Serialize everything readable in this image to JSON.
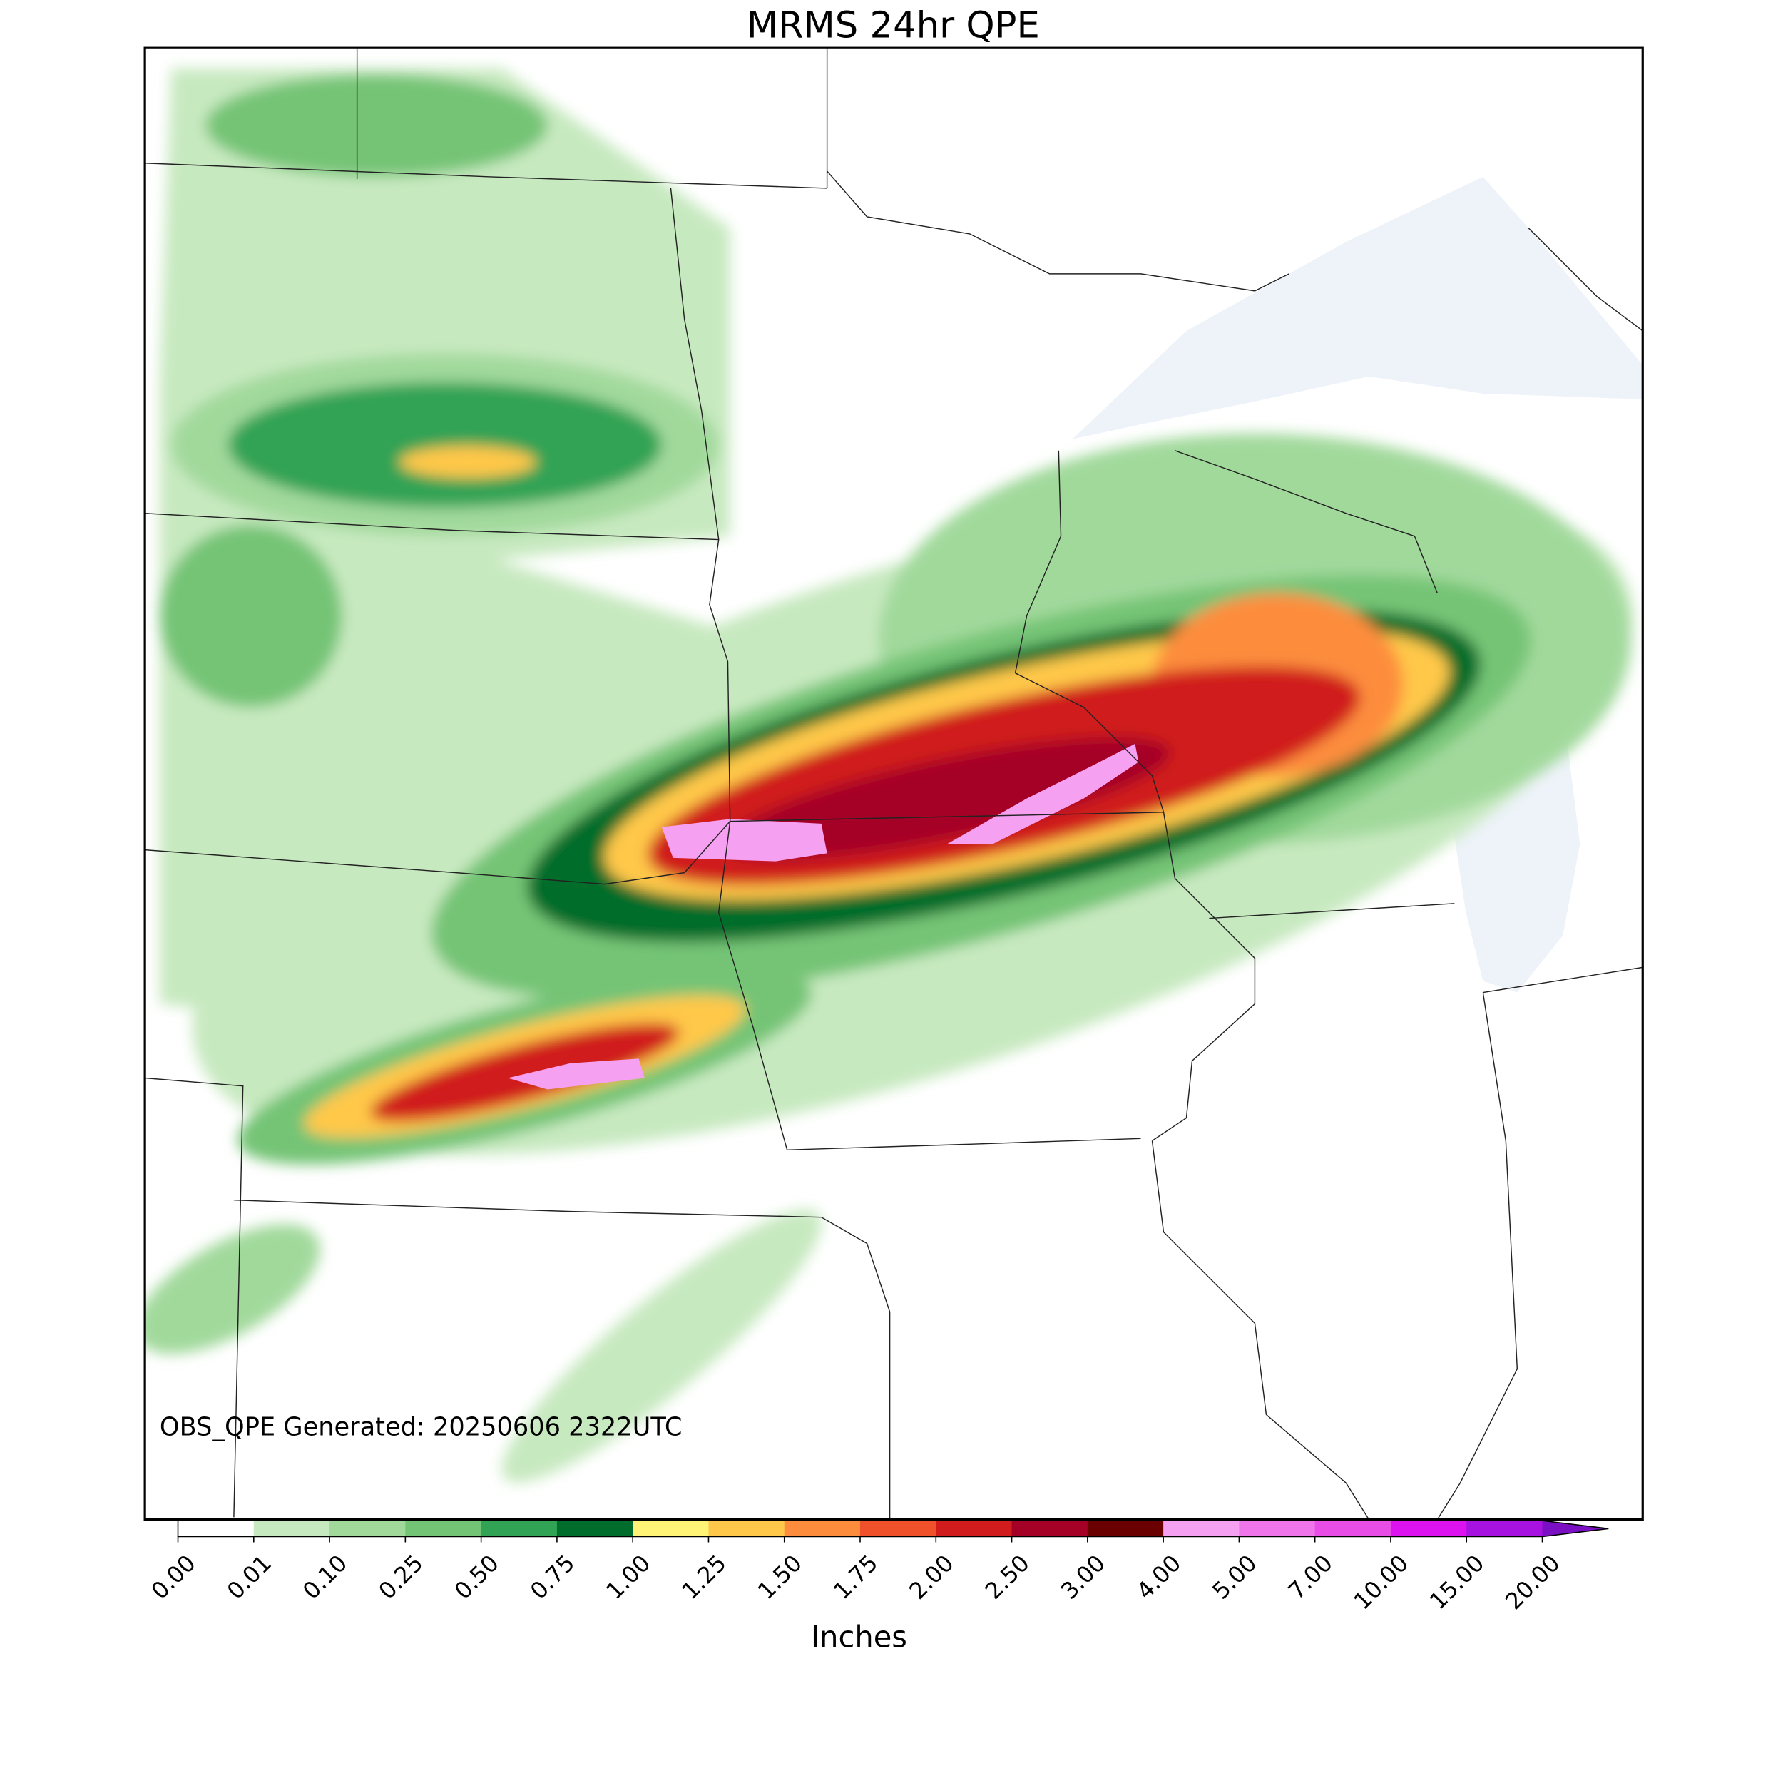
{
  "title": "MRMS 24hr QPE",
  "annotation": "OBS_QPE Generated: 20250606 2322UTC",
  "colorbar": {
    "label": "Inches",
    "ticks": [
      {
        "value": 0,
        "label": "0.00"
      },
      {
        "value": 0.01,
        "label": "0.01"
      },
      {
        "value": 0.1,
        "label": "0.10"
      },
      {
        "value": 0.25,
        "label": "0.25"
      },
      {
        "value": 0.5,
        "label": "0.50"
      },
      {
        "value": 0.75,
        "label": "0.75"
      },
      {
        "value": 1,
        "label": "1.00"
      },
      {
        "value": 1.25,
        "label": "1.25"
      },
      {
        "value": 1.5,
        "label": "1.50"
      },
      {
        "value": 1.75,
        "label": "1.75"
      },
      {
        "value": 2,
        "label": "2.00"
      },
      {
        "value": 2.5,
        "label": "2.50"
      },
      {
        "value": 3,
        "label": "3.00"
      },
      {
        "value": 4,
        "label": "4.00"
      },
      {
        "value": 5,
        "label": "5.00"
      },
      {
        "value": 7,
        "label": "7.00"
      },
      {
        "value": 10,
        "label": "10.00"
      },
      {
        "value": 15,
        "label": "15.00"
      },
      {
        "value": 20,
        "label": "20.00"
      }
    ],
    "colors": [
      "#ffffff",
      "#c7e9c0",
      "#a1d99b",
      "#74c476",
      "#31a354",
      "#006d2c",
      "#fff475",
      "#ffc84a",
      "#fd8d3c",
      "#f0502a",
      "#d01c1c",
      "#a50026",
      "#6b0000",
      "#f5a0f0",
      "#f075ea",
      "#e84ee6",
      "#dc12ef",
      "#a812e0"
    ],
    "extend_color": "#7b0fc3"
  }
}
